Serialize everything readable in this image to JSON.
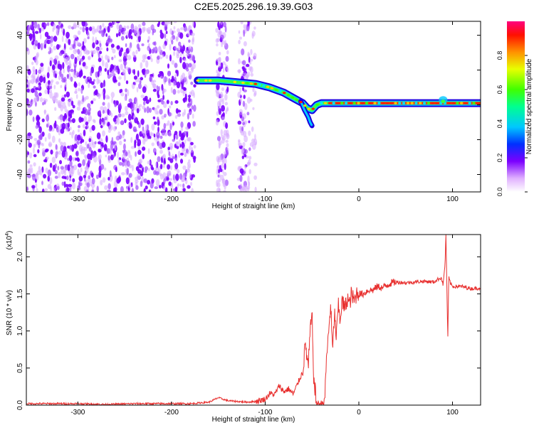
{
  "title": "C2E5.2025.296.19.39.G03",
  "chart_data": [
    {
      "type": "heatmap",
      "title": "C2E5.2025.296.19.39.G03",
      "xlabel": "Height of straight line (km)",
      "ylabel": "Frequency (Hz)",
      "xlim": [
        -355,
        130
      ],
      "ylim": [
        -50,
        48
      ],
      "xticks": [
        -300,
        -200,
        -100,
        0,
        100
      ],
      "xtick_labels": [
        "-300",
        "-200",
        "-100",
        "0",
        "100"
      ],
      "yticks": [
        -40,
        -20,
        0,
        20,
        40
      ],
      "ytick_labels": [
        "-40",
        "-20",
        "0",
        "20",
        "40"
      ],
      "colorbar": {
        "label": "Normalized spectral amplitude",
        "range": [
          0,
          1
        ],
        "ticks": [
          0.0,
          0.2,
          0.4,
          0.6,
          0.8
        ],
        "tick_labels": [
          "0.0",
          "0.2",
          "0.4",
          "0.6",
          "0.8"
        ]
      },
      "ridge": {
        "x": [
          -172,
          -150,
          -130,
          -110,
          -95,
          -80,
          -70,
          -60,
          -55,
          -50,
          -45,
          -40,
          -30,
          -20,
          -10,
          0,
          10,
          30,
          60,
          80,
          90,
          100,
          130
        ],
        "y": [
          14,
          14,
          13,
          12,
          10,
          7,
          4,
          1,
          -2,
          -3,
          0,
          1,
          1,
          1,
          1,
          1,
          1,
          1,
          1,
          1,
          1,
          1,
          1
        ]
      }
    },
    {
      "type": "line",
      "xlabel": "Height of straight line (km)",
      "ylabel": "SNR (10 * v/v)",
      "scale_label": "(x10",
      "scale_exp": "4",
      "xlim": [
        -355,
        130
      ],
      "ylim": [
        0,
        2.3
      ],
      "xticks": [
        -300,
        -200,
        -100,
        0,
        100
      ],
      "xtick_labels": [
        "-300",
        "-200",
        "-100",
        "0",
        "100"
      ],
      "yticks": [
        0.0,
        0.5,
        1.0,
        1.5,
        2.0
      ],
      "ytick_labels": [
        "0.0",
        "0.5",
        "1.0",
        "1.5",
        "2.0"
      ],
      "series": [
        {
          "name": "SNR",
          "color": "#e8302f",
          "x": [
            -355,
            -330,
            -300,
            -270,
            -240,
            -210,
            -180,
            -160,
            -150,
            -140,
            -120,
            -110,
            -100,
            -95,
            -90,
            -85,
            -80,
            -75,
            -70,
            -65,
            -60,
            -57,
            -54,
            -52,
            -50,
            -48,
            -45,
            -42,
            -40,
            -37,
            -35,
            -32,
            -30,
            -28,
            -26,
            -24,
            -22,
            -20,
            -18,
            -15,
            -12,
            -10,
            -8,
            -5,
            -2,
            0,
            5,
            10,
            15,
            20,
            25,
            30,
            35,
            40,
            50,
            60,
            70,
            80,
            85,
            88,
            90,
            92,
            93,
            94,
            95,
            96,
            98,
            100,
            110,
            120,
            130
          ],
          "y": [
            0.02,
            0.02,
            0.02,
            0.01,
            0.02,
            0.02,
            0.02,
            0.04,
            0.1,
            0.06,
            0.04,
            0.05,
            0.08,
            0.16,
            0.14,
            0.26,
            0.18,
            0.22,
            0.15,
            0.3,
            0.45,
            0.82,
            0.5,
            0.98,
            1.22,
            0.3,
            0.06,
            0.03,
            0.05,
            0.1,
            0.5,
            1.05,
            1.35,
            0.7,
            1.25,
            0.9,
            1.35,
            1.15,
            1.4,
            1.3,
            1.45,
            1.35,
            1.5,
            1.4,
            1.52,
            1.5,
            1.5,
            1.55,
            1.55,
            1.6,
            1.58,
            1.62,
            1.65,
            1.66,
            1.65,
            1.66,
            1.67,
            1.66,
            1.7,
            1.72,
            1.62,
            1.9,
            2.3,
            1.55,
            0.92,
            1.72,
            1.64,
            1.6,
            1.6,
            1.57,
            1.58
          ]
        }
      ]
    }
  ]
}
